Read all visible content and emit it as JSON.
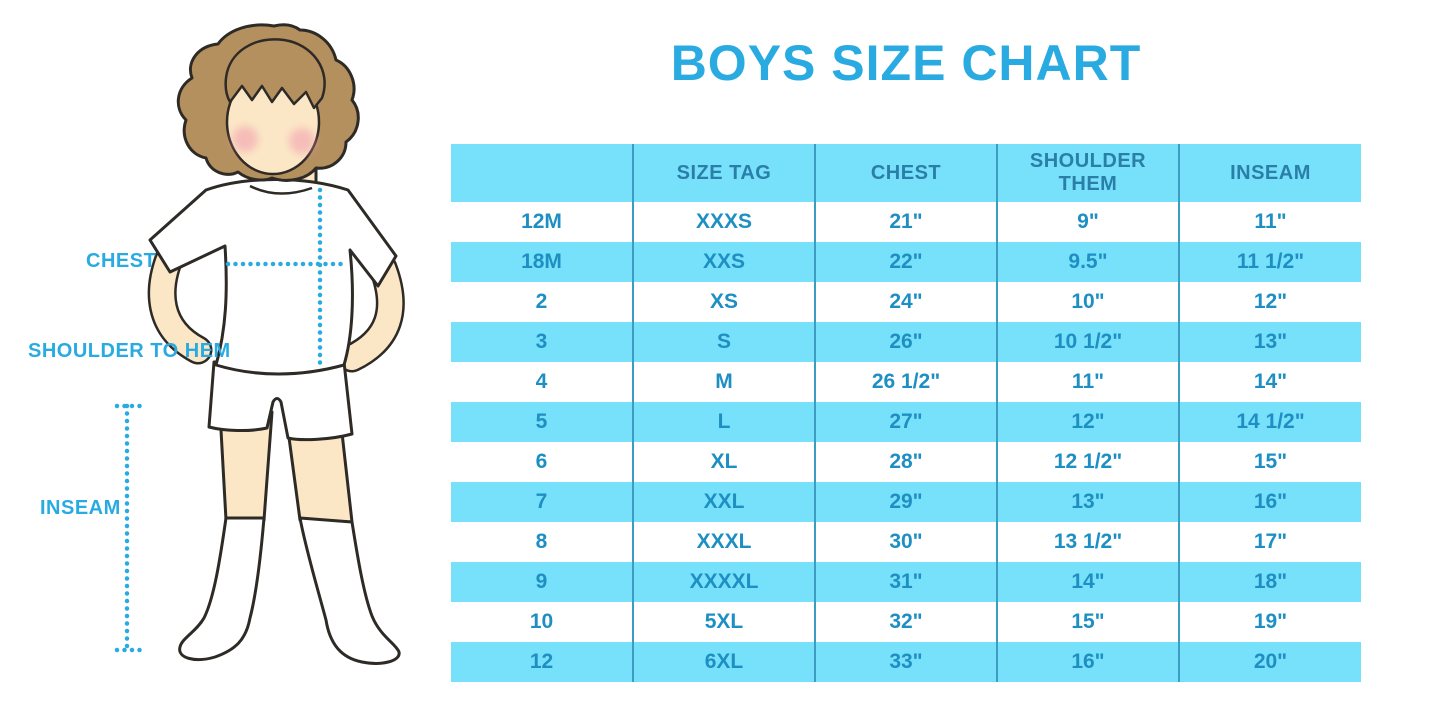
{
  "chart_data": {
    "type": "table",
    "title": "BOYS SIZE CHART",
    "columns": [
      "",
      "SIZE TAG",
      "CHEST",
      "SHOULDER THEM",
      "INSEAM"
    ],
    "rows": [
      [
        "12M",
        "XXXS",
        "21\"",
        "9\"",
        "11\""
      ],
      [
        "18M",
        "XXS",
        "22\"",
        "9.5\"",
        "11 1/2\""
      ],
      [
        "2",
        "XS",
        "24\"",
        "10\"",
        "12\""
      ],
      [
        "3",
        "S",
        "26\"",
        "10 1/2\"",
        "13\""
      ],
      [
        "4",
        "M",
        "26 1/2\"",
        "11\"",
        "14\""
      ],
      [
        "5",
        "L",
        "27\"",
        "12\"",
        "14 1/2\""
      ],
      [
        "6",
        "XL",
        "28\"",
        "12 1/2\"",
        "15\""
      ],
      [
        "7",
        "XXL",
        "29\"",
        "13\"",
        "16\""
      ],
      [
        "8",
        "XXXL",
        "30\"",
        "13 1/2\"",
        "17\""
      ],
      [
        "9",
        "XXXXL",
        "31\"",
        "14\"",
        "18\""
      ],
      [
        "10",
        "5XL",
        "32\"",
        "15\"",
        "19\""
      ],
      [
        "12",
        "6XL",
        "33\"",
        "16\"",
        "20\""
      ]
    ],
    "layout": {
      "row_striping": "white/light-blue alternating",
      "legend": "none",
      "grid": "vertical column dividers only"
    }
  },
  "diagram": {
    "labels": {
      "chest": "CHEST",
      "shoulder_to_hem": "SHOULDER TO HEM",
      "inseam": "INSEAM"
    }
  },
  "colors": {
    "accent": "#29abe2",
    "band": "#77e0fa",
    "header_text": "#2a7fa8",
    "cell_text": "#1e8fc2",
    "divider": "#3d9cc2",
    "skin": "#fbe7c6",
    "hair": "#b4905f",
    "blush": "#f2a2b0",
    "outline": "#2e2a26"
  }
}
